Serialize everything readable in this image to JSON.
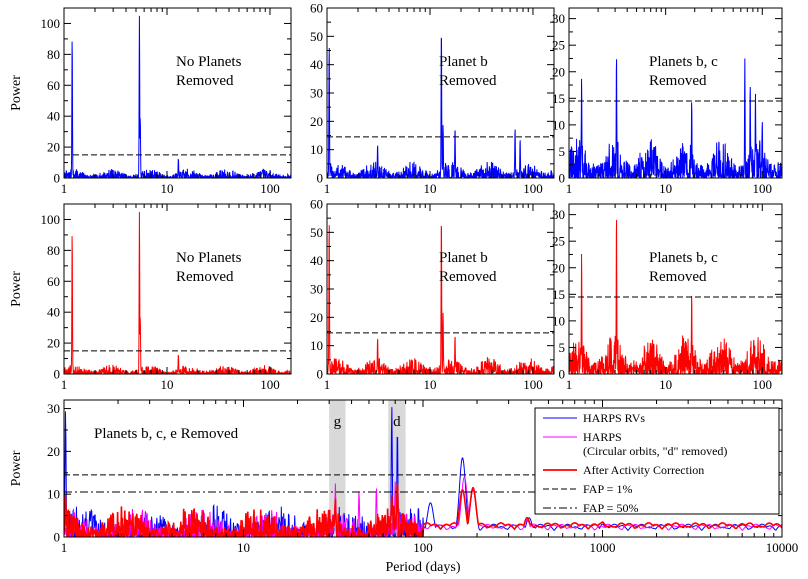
{
  "chart_data": [
    {
      "id": "p1",
      "type": "line",
      "row": 1,
      "col": 1,
      "annotation": [
        "No Planets",
        "Removed"
      ],
      "ylabel": "Power",
      "xlabel": "",
      "xscale": "log",
      "xlim": [
        1,
        160
      ],
      "ylim": [
        0,
        110
      ],
      "xticks": [
        1,
        10,
        100
      ],
      "yticks": [
        0,
        20,
        40,
        60,
        80,
        100
      ],
      "fap_1pct": 15,
      "series": [
        {
          "color": "#0000ff",
          "noise": 4,
          "peaks": [
            {
              "x": 1.2,
              "y": 92
            },
            {
              "x": 5.4,
              "y": 105
            },
            {
              "x": 5.5,
              "y": 40
            },
            {
              "x": 12.9,
              "y": 13
            }
          ]
        }
      ]
    },
    {
      "id": "p2",
      "type": "line",
      "row": 1,
      "col": 2,
      "annotation": [
        "Planet b",
        "Removed"
      ],
      "ylabel": "",
      "xlabel": "",
      "xscale": "log",
      "xlim": [
        1,
        160
      ],
      "ylim": [
        0,
        60
      ],
      "xticks": [
        1,
        10,
        100
      ],
      "yticks": [
        0,
        10,
        20,
        30,
        40,
        50,
        60
      ],
      "fap_1pct": 14.5,
      "series": [
        {
          "color": "#0000ff",
          "noise": 4,
          "peaks": [
            {
              "x": 1.05,
              "y": 48
            },
            {
              "x": 3.1,
              "y": 12
            },
            {
              "x": 12.9,
              "y": 54
            },
            {
              "x": 13.4,
              "y": 19
            },
            {
              "x": 17.5,
              "y": 18
            },
            {
              "x": 67,
              "y": 18
            },
            {
              "x": 75,
              "y": 14
            }
          ]
        }
      ]
    },
    {
      "id": "p3",
      "type": "line",
      "row": 1,
      "col": 3,
      "annotation": [
        "Planets b, c",
        "Removed"
      ],
      "ylabel": "",
      "xlabel": "",
      "xscale": "log",
      "xlim": [
        1,
        160
      ],
      "ylim": [
        0,
        32
      ],
      "xticks": [
        1,
        10,
        100
      ],
      "yticks": [
        0,
        5,
        10,
        15,
        20,
        25,
        30
      ],
      "fap_1pct": 14.5,
      "series": [
        {
          "color": "#0000ff",
          "noise": 5,
          "peaks": [
            {
              "x": 1.35,
              "y": 19
            },
            {
              "x": 3.1,
              "y": 23.5
            },
            {
              "x": 18.6,
              "y": 15
            },
            {
              "x": 66,
              "y": 22.5
            },
            {
              "x": 75,
              "y": 18
            },
            {
              "x": 85,
              "y": 16
            },
            {
              "x": 100,
              "y": 11
            }
          ]
        }
      ]
    },
    {
      "id": "p4",
      "type": "line",
      "row": 2,
      "col": 1,
      "annotation": [
        "No Planets",
        "Removed"
      ],
      "ylabel": "Power",
      "xlabel": "",
      "xscale": "log",
      "xlim": [
        1,
        160
      ],
      "ylim": [
        0,
        110
      ],
      "xticks": [
        1,
        10,
        100
      ],
      "yticks": [
        0,
        20,
        40,
        60,
        80,
        100
      ],
      "fap_1pct": 15,
      "series": [
        {
          "color": "#ff0000",
          "noise": 4,
          "peaks": [
            {
              "x": 1.2,
              "y": 93
            },
            {
              "x": 5.4,
              "y": 105
            },
            {
              "x": 5.5,
              "y": 38
            },
            {
              "x": 12.9,
              "y": 13
            }
          ]
        }
      ]
    },
    {
      "id": "p5",
      "type": "line",
      "row": 2,
      "col": 2,
      "annotation": [
        "Planet b",
        "Removed"
      ],
      "ylabel": "",
      "xlabel": "",
      "xscale": "log",
      "xlim": [
        1,
        160
      ],
      "ylim": [
        0,
        60
      ],
      "xticks": [
        1,
        10,
        100
      ],
      "yticks": [
        0,
        10,
        20,
        30,
        40,
        50,
        60
      ],
      "fap_1pct": 14.5,
      "series": [
        {
          "color": "#ff0000",
          "noise": 4,
          "peaks": [
            {
              "x": 1.05,
              "y": 55
            },
            {
              "x": 3.1,
              "y": 13
            },
            {
              "x": 12.9,
              "y": 57
            },
            {
              "x": 13.4,
              "y": 22
            },
            {
              "x": 17.5,
              "y": 14
            }
          ]
        }
      ]
    },
    {
      "id": "p6",
      "type": "line",
      "row": 2,
      "col": 3,
      "annotation": [
        "Planets b, c",
        "Removed"
      ],
      "ylabel": "",
      "xlabel": "",
      "xscale": "log",
      "xlim": [
        1,
        160
      ],
      "ylim": [
        0,
        32
      ],
      "xticks": [
        1,
        10,
        100
      ],
      "yticks": [
        0,
        5,
        10,
        15,
        20,
        25,
        30
      ],
      "fap_1pct": 14.5,
      "series": [
        {
          "color": "#ff0000",
          "noise": 5,
          "peaks": [
            {
              "x": 1.35,
              "y": 23
            },
            {
              "x": 3.1,
              "y": 30.5
            },
            {
              "x": 18.6,
              "y": 15.5
            }
          ]
        }
      ]
    },
    {
      "id": "p7",
      "type": "line",
      "row": 3,
      "col": 1,
      "annotation": [
        "Planets b, c, e Removed"
      ],
      "ylabel": "Power",
      "xlabel": "Period (days)",
      "xscale": "log",
      "xlim": [
        1,
        10000
      ],
      "ylim": [
        0,
        32
      ],
      "xticks": [
        1,
        10,
        100,
        1000,
        10000
      ],
      "yticks": [
        0,
        10,
        20,
        30
      ],
      "fap_1pct": 14.5,
      "fap_50pct": 10.5,
      "shaded_bands": [
        {
          "label": "g",
          "x0": 30,
          "x1": 37
        },
        {
          "label": "d",
          "x0": 64,
          "x1": 80
        }
      ],
      "legend": {
        "placement": "top-right",
        "entries": [
          {
            "label": "HARPS RVs",
            "color": "#0000ff",
            "style": "solid"
          },
          {
            "label": "HARPS",
            "sublabel": "(Circular orbits, \"d\" removed)",
            "color": "#ff00ff",
            "style": "solid"
          },
          {
            "label": "After Activity Correction",
            "color": "#ff0000",
            "style": "solid-thick"
          },
          {
            "label": "FAP = 1%",
            "color": "#000000",
            "style": "dashed"
          },
          {
            "label": "FAP = 50%",
            "color": "#000000",
            "style": "dashdot"
          }
        ]
      },
      "series": [
        {
          "color": "#0000ff",
          "noise": 5,
          "smooth_after": 100,
          "baseline_tail": 1.5,
          "peaks": [
            {
              "x": 1.02,
              "y": 30
            },
            {
              "x": 32.5,
              "y": 9
            },
            {
              "x": 67,
              "y": 31
            },
            {
              "x": 72,
              "y": 26
            },
            {
              "x": 110,
              "y": 8
            },
            {
              "x": 166,
              "y": 18.5
            },
            {
              "x": 190,
              "y": 11
            },
            {
              "x": 390,
              "y": 4.5
            },
            {
              "x": 1000,
              "y": 3
            },
            {
              "x": 4000,
              "y": 2
            }
          ]
        },
        {
          "color": "#ff00ff",
          "noise": 4.5,
          "smooth_after": 100,
          "baseline_tail": 1.5,
          "peaks": [
            {
              "x": 32.5,
              "y": 12.5
            },
            {
              "x": 44,
              "y": 11
            },
            {
              "x": 55,
              "y": 12
            },
            {
              "x": 70,
              "y": 13
            },
            {
              "x": 170,
              "y": 14
            },
            {
              "x": 190,
              "y": 11
            },
            {
              "x": 380,
              "y": 4
            }
          ]
        },
        {
          "color": "#ff0000",
          "noise": 5,
          "smooth_after": 100,
          "baseline_tail": 1.8,
          "peaks": [
            {
              "x": 1.02,
              "y": 10
            },
            {
              "x": 32.5,
              "y": 9
            },
            {
              "x": 67,
              "y": 10
            },
            {
              "x": 72,
              "y": 13.5
            },
            {
              "x": 166,
              "y": 11
            },
            {
              "x": 190,
              "y": 11.5
            },
            {
              "x": 380,
              "y": 4.5
            },
            {
              "x": 1000,
              "y": 3.5
            },
            {
              "x": 5000,
              "y": 2.5
            }
          ]
        }
      ]
    }
  ]
}
